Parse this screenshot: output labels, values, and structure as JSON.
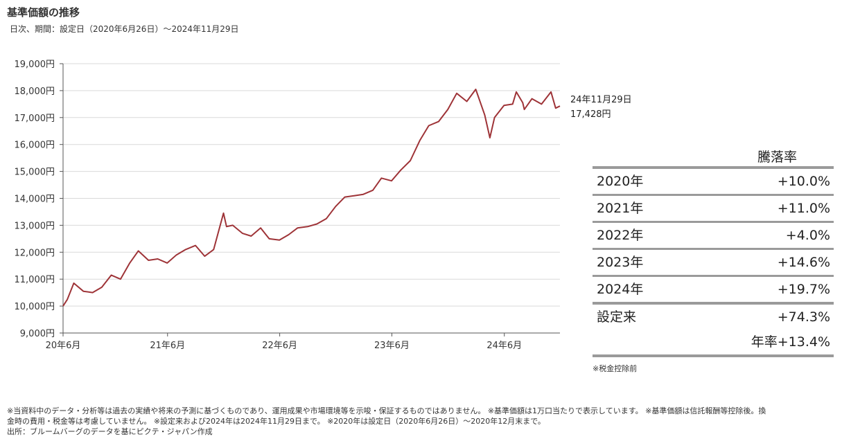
{
  "header": {
    "title": "基準価額の推移",
    "subtitle": "日次、期間：設定日（2020年6月26日）～2024年11月29日"
  },
  "chart_data": {
    "type": "line",
    "ylim": [
      9000,
      19000
    ],
    "yticks": [
      9000,
      10000,
      11000,
      12000,
      13000,
      14000,
      15000,
      16000,
      17000,
      18000,
      19000
    ],
    "ytick_labels": [
      "9,000円",
      "10,000円",
      "11,000円",
      "12,000円",
      "13,000円",
      "14,000円",
      "15,000円",
      "16,000円",
      "17,000円",
      "18,000円",
      "19,000円"
    ],
    "x_range": [
      "2020-06-26",
      "2024-11-29"
    ],
    "xticks": [
      "2020-06-26",
      "2021-06-01",
      "2022-06-01",
      "2023-06-01",
      "2024-06-01"
    ],
    "xtick_labels": [
      "20年6月",
      "21年6月",
      "22年6月",
      "23年6月",
      "24年6月"
    ],
    "line_color": "#9e3337",
    "grid": true,
    "series": [
      {
        "x": [
          "2020-06-26",
          "2020-07-10",
          "2020-07-31",
          "2020-08-31",
          "2020-09-30",
          "2020-10-30",
          "2020-11-30",
          "2020-12-30",
          "2021-01-29",
          "2021-02-26",
          "2021-03-31",
          "2021-04-30",
          "2021-05-31",
          "2021-06-30",
          "2021-07-30",
          "2021-08-31",
          "2021-09-30",
          "2021-10-29",
          "2021-11-30",
          "2021-12-10",
          "2021-12-30",
          "2022-01-31",
          "2022-02-28",
          "2022-03-31",
          "2022-04-28",
          "2022-05-31",
          "2022-06-30",
          "2022-07-29",
          "2022-08-31",
          "2022-09-30",
          "2022-10-31",
          "2022-11-30",
          "2022-12-30",
          "2023-01-31",
          "2023-02-28",
          "2023-03-31",
          "2023-04-28",
          "2023-05-31",
          "2023-06-30",
          "2023-07-31",
          "2023-08-31",
          "2023-09-29",
          "2023-10-31",
          "2023-11-30",
          "2023-12-29",
          "2024-01-31",
          "2024-02-29",
          "2024-03-29",
          "2024-04-15",
          "2024-04-30",
          "2024-05-31",
          "2024-06-28",
          "2024-07-10",
          "2024-07-31",
          "2024-08-05",
          "2024-08-30",
          "2024-09-30",
          "2024-10-31",
          "2024-11-15",
          "2024-11-29"
        ],
        "values": [
          10000,
          10250,
          10850,
          10550,
          10500,
          10700,
          11150,
          11000,
          11600,
          12050,
          11700,
          11750,
          11600,
          11900,
          12100,
          12250,
          11850,
          12100,
          13450,
          12950,
          13000,
          12700,
          12600,
          12900,
          12500,
          12450,
          12650,
          12900,
          12950,
          13050,
          13250,
          13700,
          14050,
          14100,
          14150,
          14300,
          14750,
          14650,
          15050,
          15400,
          16150,
          16700,
          16850,
          17300,
          17900,
          17600,
          18050,
          17100,
          16250,
          17000,
          17450,
          17500,
          17950,
          17550,
          17300,
          17700,
          17500,
          17950,
          17350,
          17428
        ]
      }
    ]
  },
  "latest": {
    "date_label": "24年11月29日",
    "value_label": "17,428円"
  },
  "performance": {
    "header": "騰落率",
    "rows": [
      {
        "label": "2020年",
        "value": "+10.0%"
      },
      {
        "label": "2021年",
        "value": "+11.0%"
      },
      {
        "label": "2022年",
        "value": "+4.0%"
      },
      {
        "label": "2023年",
        "value": "+14.6%"
      },
      {
        "label": "2024年",
        "value": "+19.7%"
      }
    ],
    "since_label": "設定来",
    "since_value": "+74.3%",
    "annual_label": "年率+13.4%",
    "note": "※税金控除前"
  },
  "footnotes": [
    "※当資料中のデータ・分析等は過去の実績や将来の予測に基づくものであり、運用成果や市場環境等を示唆・保証するものではありません。 ※基準価額は1万口当たりで表示しています。 ※基準価額は信託報酬等控除後。換",
    "金時の費用・税金等は考慮していません。 ※設定来および2024年は2024年11月29日まで。 ※2020年は設定日（2020年6月26日）～2020年12月末まで。",
    "出所：ブルームバーグのデータを基にピクテ・ジャパン作成"
  ]
}
